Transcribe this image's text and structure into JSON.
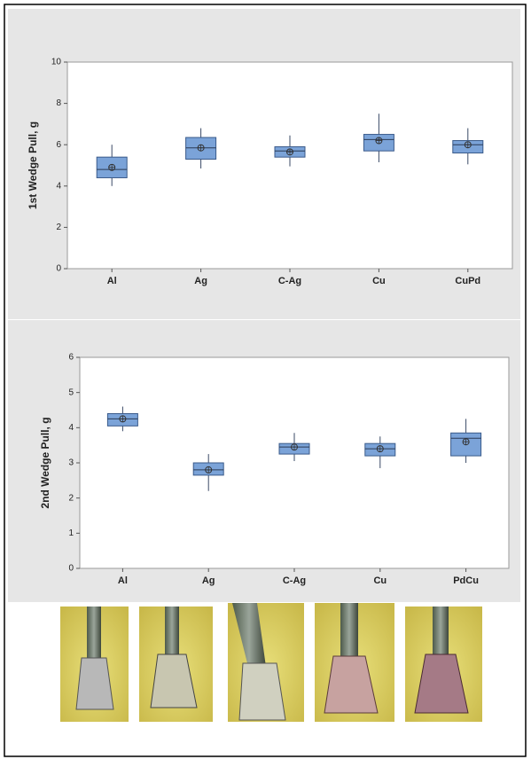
{
  "chart_data": [
    {
      "type": "box",
      "ylabel": "1st Wedge Pull, g",
      "categories": [
        "Al",
        "Ag",
        "C-Ag",
        "Cu",
        "CuPd"
      ],
      "min": [
        4.0,
        4.85,
        4.95,
        5.15,
        5.05
      ],
      "q1": [
        4.4,
        5.3,
        5.4,
        5.7,
        5.6
      ],
      "median": [
        4.8,
        5.85,
        5.7,
        6.25,
        6.0
      ],
      "q3": [
        5.4,
        6.35,
        5.9,
        6.5,
        6.2
      ],
      "max": [
        6.0,
        6.8,
        6.45,
        7.5,
        6.8
      ],
      "mean": [
        4.9,
        5.85,
        5.65,
        6.2,
        6.0
      ],
      "color": "#7ba3d8",
      "ylim": [
        0,
        10
      ],
      "yticks": [
        0,
        2,
        4,
        6,
        8,
        10
      ]
    },
    {
      "type": "box",
      "ylabel": "2nd Wedge Pull, g",
      "categories": [
        "Al",
        "Ag",
        "C-Ag",
        "Cu",
        "PdCu"
      ],
      "min": [
        3.9,
        2.2,
        3.05,
        2.85,
        3.0
      ],
      "q1": [
        4.05,
        2.65,
        3.25,
        3.2,
        3.2
      ],
      "median": [
        4.25,
        2.8,
        3.45,
        3.4,
        3.7
      ],
      "q3": [
        4.4,
        3.0,
        3.55,
        3.55,
        3.85
      ],
      "max": [
        4.6,
        3.25,
        3.85,
        3.75,
        4.25
      ],
      "mean": [
        4.25,
        2.8,
        3.45,
        3.4,
        3.6
      ],
      "color": "#7ba3d8",
      "ylim": [
        0,
        6
      ],
      "yticks": [
        0,
        1,
        2,
        3,
        4,
        5,
        6
      ]
    }
  ]
}
